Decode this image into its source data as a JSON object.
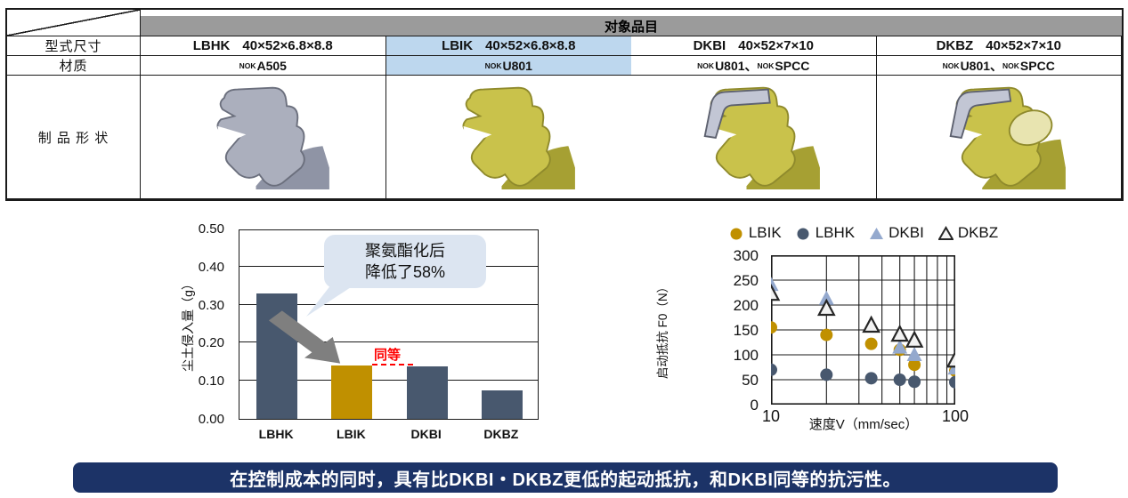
{
  "table": {
    "header": "对象品目",
    "row_labels": {
      "model": "型式尺寸",
      "material": "材质",
      "shape": "制 品 形 状"
    },
    "material_separator": "、",
    "columns": [
      {
        "code": "LBHK",
        "dims": "40×52×6.8×8.8",
        "highlight": false,
        "materials": [
          {
            "sup": "NOK",
            "name": "A505"
          }
        ],
        "shape": "gray seal cross-section"
      },
      {
        "code": "LBIK",
        "dims": "40×52×6.8×8.8",
        "highlight": true,
        "materials": [
          {
            "sup": "NOK",
            "name": "U801"
          }
        ],
        "shape": "yellow polyurethane seal cross-section"
      },
      {
        "code": "DKBI",
        "dims": "40×52×7×10",
        "highlight": false,
        "materials": [
          {
            "sup": "NOK",
            "name": "U801"
          },
          {
            "sup": "NOK",
            "name": "SPCC"
          }
        ],
        "shape": "yellow seal with gray metal case"
      },
      {
        "code": "DKBZ",
        "dims": "40×52×7×10",
        "highlight": false,
        "materials": [
          {
            "sup": "NOK",
            "name": "U801"
          },
          {
            "sup": "NOK",
            "name": "SPCC"
          }
        ],
        "shape": "yellow seal with gray metal case"
      }
    ]
  },
  "chart_data": [
    {
      "type": "bar",
      "title": "",
      "categories": [
        "LBHK",
        "LBIK",
        "DKBI",
        "DKBZ"
      ],
      "values": [
        0.33,
        0.14,
        0.138,
        0.075
      ],
      "bar_color_keys": [
        "bar_dark",
        "accent_gold",
        "bar_dark",
        "bar_dark"
      ],
      "xlabel": "",
      "ylabel": "尘土侵入量（g）",
      "ylim": [
        0,
        0.5
      ],
      "yticks": [
        0.5,
        0.4,
        0.3,
        0.2,
        0.1,
        0
      ],
      "ytick_labels": [
        "0.50",
        "0.40",
        "0.30",
        "0.20",
        "0.10",
        "0.00"
      ],
      "grid": true,
      "annotations": {
        "callout_line1": "聚氨酯化后",
        "callout_line2": "降低了58%",
        "equal_label": "同等"
      }
    },
    {
      "type": "scatter",
      "title": "",
      "xlabel": "速度V（mm/sec）",
      "ylabel": "启动抵抗 F0（N）",
      "xscale": "log",
      "xlim": [
        10,
        100
      ],
      "ylim": [
        0,
        300
      ],
      "yticks": [
        300,
        250,
        200,
        150,
        100,
        50,
        0
      ],
      "xtick_labels": [
        "10",
        "100"
      ],
      "legend_position": "top",
      "grid": true,
      "series": [
        {
          "name": "LBIK",
          "marker": "circle",
          "color_key": "accent_gold",
          "x": [
            10,
            20,
            35,
            50,
            60,
            100
          ],
          "y": [
            155,
            140,
            122,
            110,
            80,
            68
          ]
        },
        {
          "name": "LBHK",
          "marker": "circle",
          "color_key": "bar_dark",
          "x": [
            10,
            20,
            35,
            50,
            60,
            100
          ],
          "y": [
            70,
            60,
            53,
            50,
            46,
            45
          ]
        },
        {
          "name": "DKBI",
          "marker": "triangle",
          "color_key": "dkbi_triangle",
          "x": [
            10,
            20,
            50,
            60,
            100
          ],
          "y": [
            240,
            212,
            114,
            99,
            72
          ]
        },
        {
          "name": "DKBZ",
          "marker": "triangle-open",
          "color_key": "dkbz_fill",
          "x": [
            10,
            20,
            35,
            50,
            60,
            100
          ],
          "y": [
            222,
            192,
            158,
            140,
            128,
            88
          ]
        }
      ]
    }
  ],
  "banner": {
    "text": "在控制成本的同时，具有比DKBI・DKBZ更低的起动抵抗，和DKBI同等的抗污性。"
  },
  "colors": {
    "bar_dark": "#48586E",
    "accent_gold": "#C09000",
    "dkbi_triangle": "#94A9CE",
    "dkbz_fill": "#F2F2F2",
    "marker_outline": "#262626",
    "highlight_cell": "#BDD7EE",
    "header_gray": "#9B9B9B",
    "banner_navy": "#1C3367",
    "callout_bg": "#DCE5F1",
    "arrow_gray": "#7F7F7F",
    "equal_red": "#FF0000",
    "seal_yellow": "#C9C24B",
    "seal_yellow_dark": "#A6A033",
    "seal_gray": "#ABAFBD",
    "seal_gray_dark": "#8F94A5",
    "metal_gray": "#C2C6D4"
  }
}
